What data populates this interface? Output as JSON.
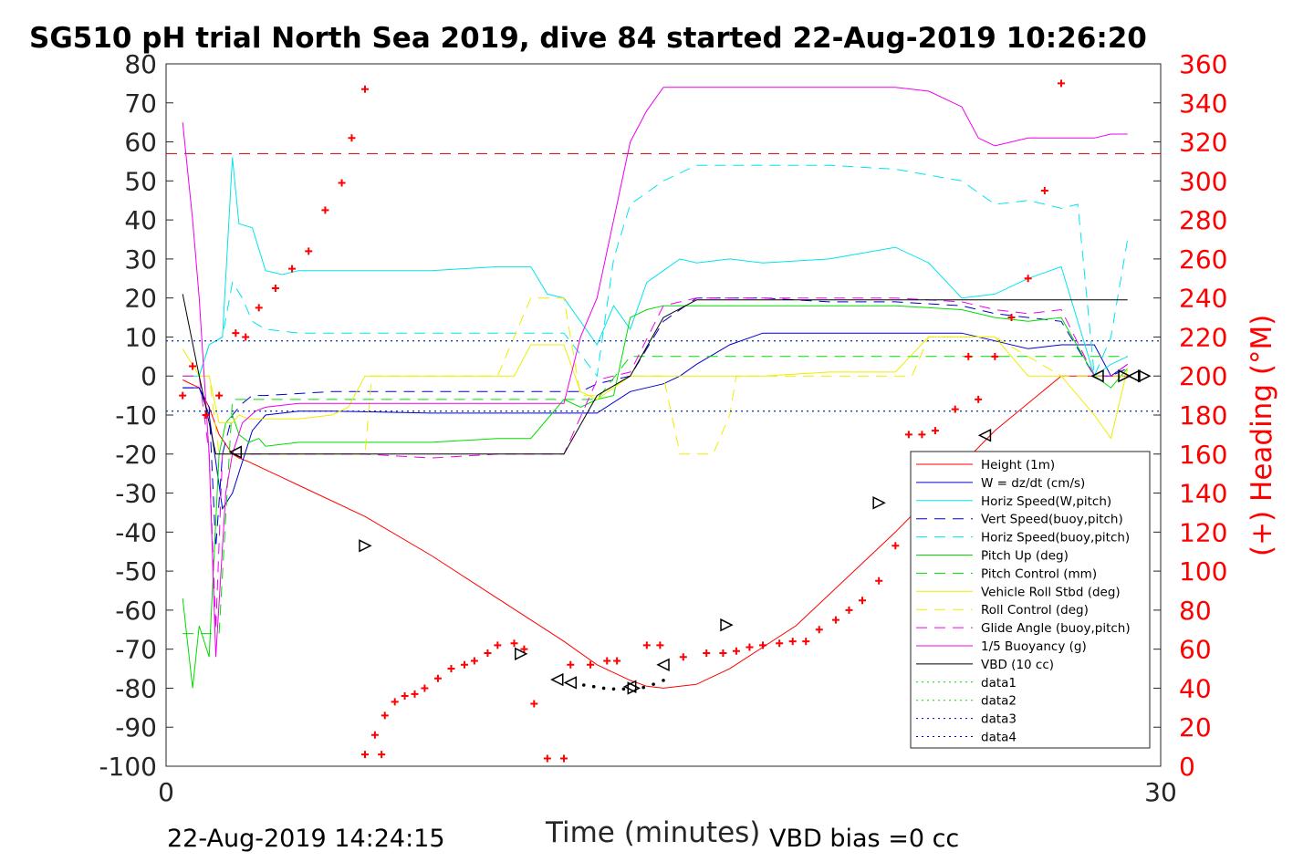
{
  "chart_data": {
    "type": "line",
    "title": "SG510 pH trial North Sea 2019, dive 84 started 22-Aug-2019 10:26:20",
    "xlabel": "Time (minutes)",
    "ylabel_right": "(+) Heading (°M)",
    "xlim": [
      0,
      30
    ],
    "ylim_left": [
      -100,
      80
    ],
    "ylim_right": [
      0,
      360
    ],
    "xticks": [
      "0",
      "30"
    ],
    "yticks_left": [
      "80",
      "70",
      "60",
      "50",
      "40",
      "30",
      "20",
      "10",
      "0",
      "-10",
      "-20",
      "-30",
      "-40",
      "-50",
      "-60",
      "-70",
      "-80",
      "-90",
      "-100"
    ],
    "yticks_right": [
      "360",
      "340",
      "320",
      "300",
      "280",
      "260",
      "240",
      "220",
      "200",
      "180",
      "160",
      "140",
      "120",
      "100",
      "80",
      "60",
      "40",
      "20",
      "0"
    ],
    "legend_position": "lower-right",
    "footer_left": "22-Aug-2019 14:24:15",
    "footer_right": "VBD bias =0 cc",
    "series": [
      {
        "name": "Height (1m)",
        "color": "#ff0000",
        "dash": "",
        "x": [
          0.5,
          1.0,
          1.3,
          1.6,
          2.0,
          2.2,
          2.5,
          3.0,
          3.5,
          4.0,
          6.0,
          8.0,
          10.0,
          12.0,
          13.0,
          14.0,
          14.5,
          15.0,
          16.0,
          17.0,
          19.0,
          22.0,
          25.0,
          27.0,
          28.0,
          28.5,
          29.0
        ],
        "y": [
          -1,
          -3,
          -8,
          -15,
          -20,
          -21,
          -22,
          -24,
          -26,
          -28,
          -36,
          -46,
          -57,
          -68,
          -74,
          -78,
          -79.5,
          -80,
          -79,
          -75,
          -64,
          -40,
          -14,
          0,
          0,
          0,
          0
        ]
      },
      {
        "name": "W = dz/dt (cm/s)",
        "color": "#0000cc",
        "dash": "",
        "x": [
          0.5,
          1.0,
          1.3,
          1.7,
          2.0,
          2.3,
          2.6,
          3.0,
          3.5,
          4.0,
          5.0,
          8.0,
          10.0,
          11.0,
          12.0,
          13.0,
          14.0,
          15.0,
          15.5,
          16.0,
          17.0,
          18.0,
          20.0,
          22.0,
          24.0,
          25.0,
          26.0,
          27.0,
          28.0,
          28.5,
          29.0
        ],
        "y": [
          -3,
          -3,
          -10,
          -34,
          -30,
          -22,
          -14,
          -10,
          -9.5,
          -9,
          -9,
          -9.5,
          -9.5,
          -9.5,
          -9.5,
          -9.5,
          -4,
          -2,
          0,
          3,
          8,
          11,
          11,
          11,
          11,
          9,
          7,
          8,
          8,
          0,
          3
        ]
      },
      {
        "name": "Horiz Speed(W,pitch)",
        "color": "#00e5ee",
        "dash": "",
        "x": [
          0.5,
          1.0,
          1.3,
          1.7,
          2.0,
          2.2,
          2.6,
          3.0,
          3.5,
          4.0,
          5.0,
          8.0,
          10.0,
          11.0,
          11.5,
          12.0,
          13.0,
          13.5,
          14.0,
          14.5,
          15.0,
          15.5,
          16.0,
          17.0,
          18.0,
          20.0,
          22.0,
          23.0,
          24.0,
          25.0,
          26.0,
          27.0,
          28.0,
          28.5,
          29.0
        ],
        "y": [
          0,
          0,
          8,
          10,
          56,
          39,
          38,
          27,
          26,
          27,
          27,
          27,
          28,
          28,
          21,
          20,
          8,
          18,
          12,
          24,
          27,
          30,
          29,
          30,
          29,
          30,
          33,
          29,
          20,
          21,
          25,
          28,
          0,
          3,
          5
        ]
      },
      {
        "name": "Vert Speed(buoy,pitch)",
        "color": "#0000cc",
        "dash": "12,8",
        "x": [
          0.5,
          1.0,
          1.3,
          1.5,
          1.7,
          2.0,
          2.3,
          2.6,
          3.0,
          5.0,
          8.0,
          10.0,
          11.0,
          12.0,
          12.5,
          13.0,
          14.0,
          15.0,
          16.0,
          17.0,
          18.0,
          20.0,
          22.0,
          24.0,
          25.0,
          26.0,
          27.0,
          28.0,
          28.5,
          29.0
        ],
        "y": [
          -3,
          -3,
          -8,
          -44,
          -20,
          -10,
          -7,
          -5,
          -5,
          -4,
          -4,
          -4,
          -4,
          -4,
          -4,
          -2,
          0,
          14,
          20,
          20,
          20,
          19,
          19,
          18,
          16,
          15,
          14,
          0,
          0,
          2
        ]
      },
      {
        "name": "Horiz Speed(buoy,pitch)",
        "color": "#00e5ee",
        "dash": "12,8",
        "x": [
          0.5,
          1.0,
          1.3,
          1.7,
          2.0,
          2.3,
          2.6,
          3.0,
          4.0,
          5.0,
          8.0,
          10.0,
          11.0,
          12.0,
          13.0,
          13.5,
          14.0,
          15.0,
          16.0,
          17.0,
          18.0,
          20.0,
          22.0,
          24.0,
          25.0,
          26.0,
          27.0,
          27.5,
          28.0,
          28.5,
          29.0
        ],
        "y": [
          0,
          0,
          8,
          10,
          24,
          20,
          14,
          12,
          11,
          11,
          11,
          11,
          11,
          11,
          0,
          30,
          44,
          50,
          54,
          54,
          54,
          54,
          53,
          50,
          44,
          45,
          43,
          44,
          0,
          10,
          35
        ]
      },
      {
        "name": "Pitch Up (deg)",
        "color": "#00dd00",
        "dash": "",
        "x": [
          0.5,
          0.8,
          1.0,
          1.3,
          1.6,
          1.8,
          2.0,
          2.2,
          2.5,
          2.8,
          3.0,
          4.0,
          5.0,
          8.0,
          10.0,
          11.0,
          12.0,
          12.5,
          13.0,
          13.5,
          14.0,
          14.5,
          15.0,
          16.0,
          17.0,
          18.0,
          20.0,
          22.0,
          24.0,
          25.0,
          26.0,
          27.0,
          28.0,
          28.5,
          29.0
        ],
        "y": [
          -57,
          -80,
          -64,
          -72,
          -20,
          -12,
          -10,
          -15,
          -17,
          -16,
          -18,
          -17,
          -17,
          -17,
          -16,
          -16,
          -6,
          -8,
          -6,
          -5,
          15,
          17,
          18,
          18,
          18,
          18,
          18,
          18,
          17,
          15,
          14,
          15,
          0,
          -3,
          2
        ]
      },
      {
        "name": "Pitch Control (mm)",
        "color": "#00dd00",
        "dash": "12,8",
        "x": [
          0.5,
          1.0,
          1.3,
          1.6,
          2.0,
          4.0,
          8.0,
          11.0,
          12.0,
          13.0,
          14.0,
          15.0,
          17.0,
          20.0,
          25.0,
          28.0,
          29.0
        ],
        "y": [
          -66,
          -66,
          -66,
          -66,
          -6,
          -6,
          -6,
          -6,
          -6,
          -6,
          5,
          5,
          5,
          5,
          5,
          5,
          5
        ]
      },
      {
        "name": "Vehicle Roll Stbd (deg)",
        "color": "#eeee00",
        "dash": "",
        "x": [
          0.5,
          1.0,
          1.3,
          1.6,
          2.0,
          2.2,
          2.5,
          3.0,
          4.0,
          5.0,
          5.5,
          6.0,
          7.0,
          8.0,
          9.0,
          10.0,
          10.5,
          11.0,
          11.5,
          12.0,
          12.5,
          13.0,
          14.0,
          15.0,
          16.0,
          17.0,
          18.0,
          20.0,
          22.0,
          23.0,
          24.0,
          25.0,
          26.0,
          27.0,
          28.0,
          28.5,
          29.0
        ],
        "y": [
          7,
          0,
          0,
          -12,
          -12,
          -10,
          -11,
          -11,
          -11,
          -10,
          -8,
          0,
          0,
          0,
          0,
          0,
          0,
          8,
          8,
          8,
          -4,
          -6,
          0,
          0,
          0,
          0,
          0,
          1,
          1,
          10,
          10,
          10,
          0,
          0,
          -10,
          -16,
          2
        ]
      },
      {
        "name": "Roll Control (deg)",
        "color": "#eeee00",
        "dash": "12,8",
        "x": [
          0.5,
          1.0,
          1.3,
          1.6,
          2.0,
          4.0,
          6.0,
          6.2,
          8.0,
          10.0,
          11.0,
          11.5,
          12.0,
          12.5,
          13.0,
          14.0,
          15.0,
          15.5,
          16.0,
          16.5,
          17.0,
          17.2,
          18.0,
          20.0,
          22.0,
          22.5,
          23.0,
          25.0,
          27.0,
          28.0,
          29.0
        ],
        "y": [
          0,
          0,
          0,
          -20,
          -20,
          -20,
          -20,
          0,
          0,
          0,
          20,
          20,
          20,
          -5,
          -5,
          0,
          0,
          -20,
          -20,
          -20,
          -10,
          0,
          0,
          0,
          0,
          0,
          10,
          10,
          0,
          0,
          0
        ]
      },
      {
        "name": "Glide Angle (buoy,pitch)",
        "color": "#ee00ee",
        "dash": "12,8",
        "x": [
          0.5,
          1.0,
          1.3,
          1.5,
          1.7,
          2.0,
          2.3,
          2.6,
          3.0,
          4.0,
          6.0,
          8.0,
          10.0,
          11.0,
          12.0,
          13.0,
          14.0,
          15.0,
          16.0,
          17.0,
          18.0,
          20.0,
          22.0,
          24.0,
          25.0,
          26.0,
          27.0,
          28.0,
          28.5,
          29.0
        ],
        "y": [
          0,
          0,
          -20,
          -65,
          -20,
          -20,
          -20,
          -20,
          -20,
          -20,
          -20,
          -21,
          -20,
          -20,
          -20,
          -1,
          1,
          18,
          20,
          20,
          20,
          20,
          20,
          19,
          17,
          16,
          17,
          0,
          0,
          3
        ]
      },
      {
        "name": "1/5 Buoyancy (g)",
        "color": "#ee00ee",
        "dash": "",
        "x": [
          0.5,
          0.8,
          1.0,
          1.3,
          1.5,
          1.8,
          2.0,
          2.3,
          2.7,
          3.0,
          4.0,
          6.0,
          8.0,
          10.0,
          11.0,
          12.0,
          12.5,
          13.0,
          14.0,
          14.5,
          15.0,
          16.0,
          18.0,
          20.0,
          22.0,
          23.0,
          24.0,
          24.5,
          25.0,
          26.0,
          27.0,
          28.0,
          28.5,
          29.0
        ],
        "y": [
          65,
          40,
          20,
          -20,
          -72,
          -30,
          -20,
          -12,
          -9,
          -8,
          -7,
          -7,
          -7,
          -7,
          -7,
          -7,
          10,
          20,
          60,
          68,
          74,
          74,
          74,
          74,
          74,
          73,
          69,
          61,
          59,
          61,
          61,
          61,
          62,
          62
        ]
      },
      {
        "name": "VBD (10 cc)",
        "color": "#000000",
        "dash": "",
        "x": [
          0.5,
          1.0,
          1.5,
          2.0,
          3.0,
          8.0,
          11.0,
          12.0,
          13.0,
          14.0,
          15.0,
          16.0,
          17.0,
          20.0,
          25.0,
          28.0,
          29.0
        ],
        "y": [
          21,
          0,
          -20,
          -20,
          -20,
          -20,
          -20,
          -20,
          -5,
          0,
          15,
          19.5,
          19.5,
          19.5,
          19.5,
          19.5,
          19.5
        ]
      },
      {
        "name": "data1",
        "color": "#00dd00",
        "dash": "2,4",
        "x": [
          0,
          30
        ],
        "y": [
          -9,
          -9
        ]
      },
      {
        "name": "data2",
        "color": "#00dd00",
        "dash": "2,4",
        "x": [
          0,
          30
        ],
        "y": [
          9,
          9
        ]
      },
      {
        "name": "data3",
        "color": "#0000cc",
        "dash": "2,4",
        "x": [
          0,
          30
        ],
        "y": [
          -9,
          -9
        ]
      },
      {
        "name": "data4",
        "color": "#0000cc",
        "dash": "2,4",
        "x": [
          0,
          30
        ],
        "y": [
          9,
          9
        ]
      }
    ],
    "reference_line": {
      "color": "#cc0000",
      "dash": "12,8",
      "y": 57
    },
    "heading_points": {
      "color": "#ff0000",
      "x": [
        0.5,
        0.8,
        1.2,
        1.6,
        2.1,
        2.4,
        2.8,
        3.3,
        3.8,
        4.3,
        4.8,
        5.3,
        5.6,
        6.0,
        6.5,
        6.0,
        6.3,
        6.6,
        6.9,
        7.2,
        7.5,
        7.8,
        8.2,
        8.6,
        9.0,
        9.3,
        9.7,
        10.0,
        10.5,
        10.8,
        11.1,
        11.5,
        12.0,
        12.2,
        12.8,
        13.3,
        13.6,
        14.5,
        14.9,
        15.6,
        16.3,
        16.8,
        17.2,
        17.6,
        18.0,
        18.5,
        18.9,
        19.3,
        19.7,
        20.2,
        20.6,
        21.0,
        21.5,
        22.0,
        22.4,
        22.8,
        23.2,
        23.8,
        24.2,
        24.5,
        25.0,
        25.5,
        26.0,
        26.5,
        27.0
      ],
      "y": [
        190,
        205,
        180,
        190,
        222,
        220,
        235,
        245,
        255,
        264,
        285,
        299,
        322,
        347,
        6,
        6,
        16,
        26,
        33,
        36,
        37,
        40,
        45,
        50,
        52,
        54,
        58,
        62,
        63,
        60,
        32,
        4,
        4,
        52,
        52,
        54,
        54,
        62,
        62,
        56,
        58,
        58,
        59,
        61,
        62,
        63,
        64,
        64,
        70,
        75,
        80,
        85,
        95,
        113,
        170,
        170,
        172,
        183,
        210,
        188,
        210,
        230,
        250,
        295,
        350
      ],
      "note": ""
    },
    "triangles": {
      "color": "#000000",
      "points": [
        {
          "x": 2.1,
          "y": -19.5,
          "dir": "left"
        },
        {
          "x": 6.0,
          "y": -43.5,
          "dir": "right"
        },
        {
          "x": 10.7,
          "y": -71.2,
          "dir": "right"
        },
        {
          "x": 11.8,
          "y": -77.8,
          "dir": "left"
        },
        {
          "x": 12.2,
          "y": -78.6,
          "dir": "left"
        },
        {
          "x": 14.0,
          "y": -79.6,
          "dir": "left"
        },
        {
          "x": 14.1,
          "y": -80.0,
          "dir": "right"
        },
        {
          "x": 15.0,
          "y": -74.0,
          "dir": "left"
        },
        {
          "x": 16.9,
          "y": -63.8,
          "dir": "right"
        },
        {
          "x": 21.5,
          "y": -32.5,
          "dir": "right"
        },
        {
          "x": 24.7,
          "y": -15.2,
          "dir": "left"
        },
        {
          "x": 28.1,
          "y": 0,
          "dir": "left"
        },
        {
          "x": 28.9,
          "y": 0,
          "dir": "right"
        },
        {
          "x": 29.2,
          "y": 0,
          "dir": "left"
        },
        {
          "x": 29.5,
          "y": 0,
          "dir": "right"
        }
      ]
    },
    "bottom_dots": {
      "color": "#000000",
      "x": [
        12.6,
        12.9,
        13.2,
        13.5,
        13.8,
        14.4,
        14.7,
        15.0
      ],
      "y": [
        -79.2,
        -79.6,
        -80.0,
        -80.2,
        -80.2,
        -79.8,
        -79.0,
        -78.0
      ]
    }
  }
}
